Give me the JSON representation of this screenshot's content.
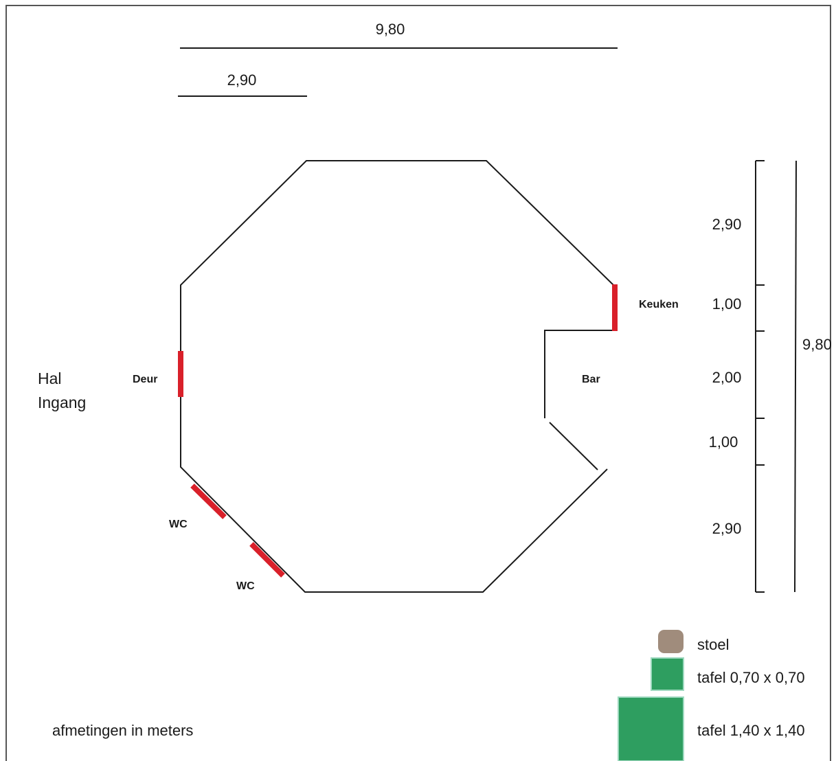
{
  "dimensions": {
    "top_total": "9,80",
    "top_segment": "2,90",
    "right_total": "9,80",
    "right_segments": [
      "2,90",
      "1,00",
      "2,00",
      "1,00",
      "2,90"
    ]
  },
  "labels": {
    "hal": "Hal",
    "ingang": "Ingang",
    "deur": "Deur",
    "keuken": "Keuken",
    "bar": "Bar",
    "wc_1": "WC",
    "wc_2": "WC",
    "units_note": "afmetingen in meters"
  },
  "legend": {
    "stoel": "stoel",
    "tafel_small": "tafel 0,70 x 0,70",
    "tafel_large": "tafel 1,40 x 1,40"
  },
  "colors": {
    "wall": "#1a1a1a",
    "opening": "#d9202a",
    "stoel": "#a08c7c",
    "tafel": "#2e9e60",
    "tafel_border": "#9fd9c0"
  }
}
